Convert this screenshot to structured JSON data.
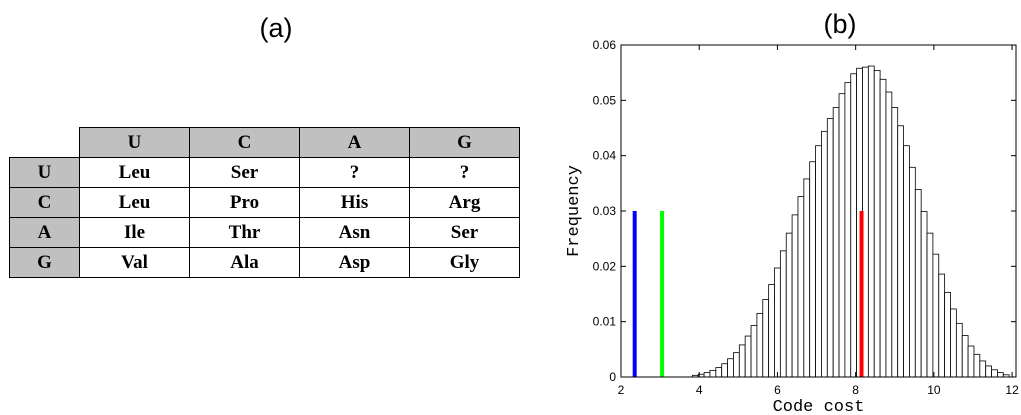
{
  "panel_a": {
    "label": "(a)",
    "table": {
      "columns": [
        "U",
        "C",
        "A",
        "G"
      ],
      "rows": [
        {
          "head": "U",
          "cells": [
            "Leu",
            "Ser",
            "?",
            "?"
          ]
        },
        {
          "head": "C",
          "cells": [
            "Leu",
            "Pro",
            "His",
            "Arg"
          ]
        },
        {
          "head": "A",
          "cells": [
            "Ile",
            "Thr",
            "Asn",
            "Ser"
          ]
        },
        {
          "head": "G",
          "cells": [
            "Val",
            "Ala",
            "Asp",
            "Gly"
          ]
        }
      ]
    }
  },
  "panel_b": {
    "label": "(b)"
  },
  "chart_data": {
    "type": "bar",
    "title": "",
    "xlabel": "Code cost",
    "ylabel": "Frequency",
    "xlim": [
      2,
      12.1
    ],
    "ylim": [
      0,
      0.06
    ],
    "xticks": [
      2,
      4,
      6,
      8,
      10,
      12
    ],
    "yticks": [
      0,
      0.01,
      0.02,
      0.03,
      0.04,
      0.05,
      0.06
    ],
    "grid": false,
    "bin_width": 0.15,
    "histogram": {
      "x": [
        3.9,
        4.05,
        4.2,
        4.35,
        4.5,
        4.65,
        4.8,
        4.95,
        5.1,
        5.25,
        5.4,
        5.55,
        5.7,
        5.85,
        6.0,
        6.15,
        6.3,
        6.45,
        6.6,
        6.75,
        6.9,
        7.05,
        7.2,
        7.35,
        7.5,
        7.65,
        7.8,
        7.95,
        8.1,
        8.25,
        8.4,
        8.55,
        8.7,
        8.85,
        9.0,
        9.15,
        9.3,
        9.45,
        9.6,
        9.75,
        9.9,
        10.05,
        10.2,
        10.35,
        10.5,
        10.65,
        10.8,
        10.95,
        11.1,
        11.25,
        11.4,
        11.55,
        11.7,
        11.85
      ],
      "values": [
        0.0003,
        0.0005,
        0.0008,
        0.0012,
        0.0017,
        0.0024,
        0.0033,
        0.0044,
        0.0058,
        0.0074,
        0.0093,
        0.0115,
        0.014,
        0.0167,
        0.0197,
        0.0228,
        0.026,
        0.0293,
        0.0326,
        0.0358,
        0.0389,
        0.0418,
        0.0444,
        0.0467,
        0.0487,
        0.0512,
        0.0532,
        0.0548,
        0.0558,
        0.056,
        0.0562,
        0.0554,
        0.0538,
        0.0515,
        0.0487,
        0.0454,
        0.0418,
        0.0379,
        0.0339,
        0.0299,
        0.026,
        0.0222,
        0.0186,
        0.0153,
        0.0123,
        0.0097,
        0.0075,
        0.0056,
        0.0041,
        0.0029,
        0.002,
        0.0013,
        0.0008,
        0.0004
      ],
      "fill": "#ffffff",
      "edge": "#000000"
    },
    "reference_lines": [
      {
        "x": 2.35,
        "height": 0.03,
        "color": "#0000ff"
      },
      {
        "x": 3.05,
        "height": 0.03,
        "color": "#00ff00"
      },
      {
        "x": 8.15,
        "height": 0.03,
        "color": "#ff0000"
      }
    ]
  }
}
